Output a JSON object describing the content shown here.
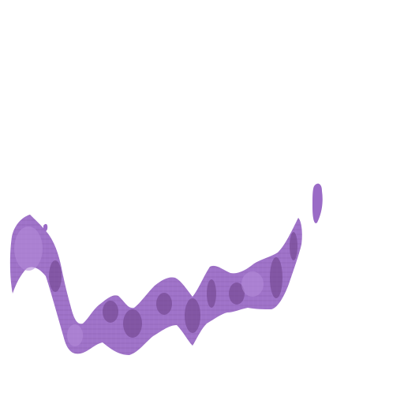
{
  "image": {
    "background": "#ffffff",
    "tissue_fill": "#9a6bc6",
    "tissue_light": "#b48ad8",
    "tissue_dark": "#6b3f86",
    "stain_accent": "#8a4a7a"
  }
}
